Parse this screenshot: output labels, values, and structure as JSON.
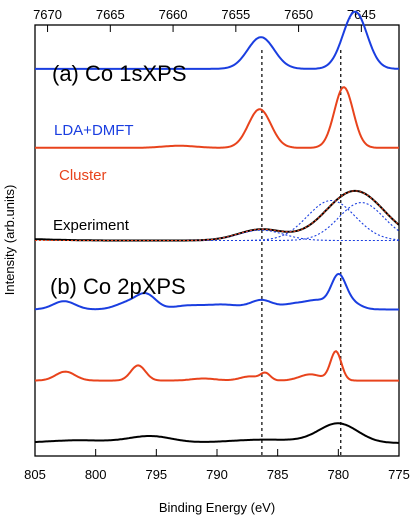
{
  "chart_data": {
    "type": "line",
    "xlabel": "Binding Energy (eV)",
    "ylabel": "Intensity (arb.units)",
    "x_bottom_ticks": [
      "805",
      "800",
      "795",
      "790",
      "785",
      "780",
      "775"
    ],
    "x_bottom_range": [
      805,
      775
    ],
    "x_top_ticks": [
      "7670",
      "7665",
      "7660",
      "7655",
      "7650",
      "7645"
    ],
    "x_top_range": [
      7671,
      7642
    ],
    "grid": false,
    "reference_lines": [
      {
        "name": "sat-line",
        "x_bottom": 786.3,
        "style": "dotted"
      },
      {
        "name": "main-line",
        "x_bottom": 779.8,
        "style": "dotted"
      }
    ],
    "panels": [
      {
        "label": "(a) Co 1sXPS",
        "axis": "top",
        "series": [
          {
            "name": "LDA+DMFT",
            "color": "#1a3ee0",
            "offset": 0.865,
            "peaks": [
              [
                7653.0,
                0.46,
                1.05
              ],
              [
                7645.5,
                0.83,
                0.95
              ]
            ],
            "baseline": 0.02
          },
          {
            "name": "Cluster",
            "color": "#e8431c",
            "offset": 0.685,
            "peaks": [
              [
                7653.1,
                0.56,
                0.9
              ],
              [
                7646.4,
                0.88,
                0.75
              ],
              [
                7659.5,
                0.03,
                1.3
              ]
            ],
            "baseline": 0.0
          },
          {
            "name": "Experiment",
            "color": "#000000",
            "offset": 0.47,
            "peaks": [
              [
                7653.0,
                0.16,
                1.8
              ],
              [
                7645.5,
                0.72,
                2.3
              ]
            ],
            "baseline": 0.0,
            "rise_left": 0.2
          },
          {
            "name": "",
            "color": "#1a3ee0",
            "dashed": true,
            "offset": 0.47,
            "peaks": [
              [
                7653.0,
                0.15,
                1.8
              ]
            ],
            "baseline": 0.0
          },
          {
            "name": "",
            "color": "#1a3ee0",
            "dashed": true,
            "offset": 0.47,
            "peaks": [
              [
                7647.4,
                0.58,
                1.9
              ]
            ],
            "baseline": 0.0
          },
          {
            "name": "",
            "color": "#1a3ee0",
            "dashed": true,
            "offset": 0.47,
            "peaks": [
              [
                7645.0,
                0.55,
                1.8
              ]
            ],
            "baseline": 0.0
          },
          {
            "name": "",
            "color": "#e8431c",
            "dashed": true,
            "offset": 0.47,
            "peaks": [
              [
                7653.0,
                0.16,
                1.8
              ],
              [
                7645.5,
                0.72,
                2.3
              ]
            ],
            "baseline": 0.0
          }
        ]
      },
      {
        "label": "(b) Co 2pXPS",
        "axis": "bottom",
        "series": [
          {
            "name": "",
            "color": "#1a3ee0",
            "offset": 0.31,
            "peaks": [
              [
                802.6,
                0.12,
                0.9
              ],
              [
                797.3,
                0.1,
                1.0
              ],
              [
                795.8,
                0.2,
                0.8
              ],
              [
                792.5,
                0.05,
                1.2
              ],
              [
                789.5,
                0.07,
                1.5
              ],
              [
                786.3,
                0.13,
                0.9
              ],
              [
                783.6,
                0.08,
                1.0
              ],
              [
                781.7,
                0.12,
                0.9
              ],
              [
                780.0,
                0.45,
                0.6
              ],
              [
                779.0,
                0.1,
                0.8
              ]
            ],
            "baseline": 0.0
          },
          {
            "name": "",
            "color": "#e8431c",
            "offset": 0.145,
            "peaks": [
              [
                802.5,
                0.13,
                0.8
              ],
              [
                796.5,
                0.22,
                0.6
              ],
              [
                791.1,
                0.03,
                1.0
              ],
              [
                787.3,
                0.06,
                0.8
              ],
              [
                786.0,
                0.1,
                0.4
              ],
              [
                782.3,
                0.09,
                0.9
              ],
              [
                780.2,
                0.42,
                0.45
              ]
            ],
            "baseline": 0.0
          },
          {
            "name": "",
            "color": "#000000",
            "offset": 0.0,
            "peaks": [
              [
                801.5,
                0.04,
                2.5
              ],
              [
                795.5,
                0.1,
                1.8
              ],
              [
                786.0,
                0.05,
                3.0
              ],
              [
                780.0,
                0.28,
                1.6
              ]
            ],
            "baseline": 0.0,
            "rise_left": 0.0
          }
        ]
      }
    ]
  }
}
